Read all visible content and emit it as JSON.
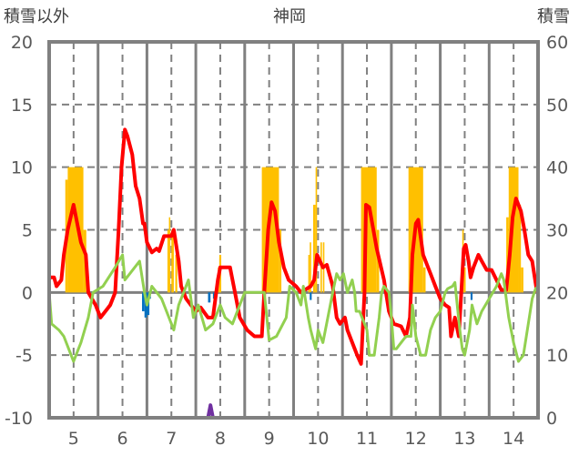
{
  "chart_data": {
    "type": "line",
    "title": "神岡",
    "ylabel_left": "積雪以外",
    "ylabel_right": "積雪",
    "xlim": [
      4.5,
      14.5
    ],
    "ylim_left": [
      -10,
      20
    ],
    "ylim_right": [
      0,
      60
    ],
    "x_ticks": [
      "5",
      "6",
      "7",
      "8",
      "9",
      "10",
      "11",
      "12",
      "13",
      "14"
    ],
    "y_ticks_left": [
      "20",
      "15",
      "10",
      "5",
      "0",
      "-5",
      "-10"
    ],
    "y_ticks_right": [
      "60",
      "50",
      "40",
      "30",
      "20",
      "10",
      "0"
    ],
    "grid": true,
    "colors": {
      "red": "#ff0000",
      "green": "#92d050",
      "orange": "#ffc000",
      "blue": "#0070c0",
      "purple": "#7030a0",
      "axis": "#808080"
    },
    "series": [
      {
        "name": "red",
        "axis": "left",
        "points": [
          [
            4.5,
            1.2
          ],
          [
            4.6,
            1.2
          ],
          [
            4.65,
            0.5
          ],
          [
            4.75,
            1
          ],
          [
            4.8,
            3
          ],
          [
            4.88,
            5
          ],
          [
            5.0,
            7
          ],
          [
            5.05,
            6
          ],
          [
            5.15,
            4
          ],
          [
            5.25,
            3
          ],
          [
            5.3,
            0
          ],
          [
            5.45,
            -1
          ],
          [
            5.55,
            -2
          ],
          [
            5.65,
            -1.5
          ],
          [
            5.75,
            -1
          ],
          [
            5.85,
            0
          ],
          [
            5.92,
            5
          ],
          [
            5.98,
            10
          ],
          [
            6.05,
            13
          ],
          [
            6.1,
            12.5
          ],
          [
            6.2,
            11
          ],
          [
            6.27,
            8.5
          ],
          [
            6.35,
            7.5
          ],
          [
            6.42,
            5.5
          ],
          [
            6.45,
            5.5
          ],
          [
            6.5,
            4
          ],
          [
            6.6,
            3.2
          ],
          [
            6.7,
            3.5
          ],
          [
            6.75,
            3.3
          ],
          [
            6.85,
            4.5
          ],
          [
            7.0,
            4.5
          ],
          [
            7.05,
            5
          ],
          [
            7.15,
            2.5
          ],
          [
            7.2,
            0.5
          ],
          [
            7.3,
            -0.5
          ],
          [
            7.4,
            -1
          ],
          [
            7.5,
            -1.5
          ],
          [
            7.6,
            -1.2
          ],
          [
            7.75,
            -2
          ],
          [
            7.85,
            -2
          ],
          [
            7.9,
            -0.5
          ],
          [
            7.95,
            1
          ],
          [
            8.0,
            2
          ],
          [
            8.2,
            2
          ],
          [
            8.3,
            0
          ],
          [
            8.4,
            -2
          ],
          [
            8.55,
            -3
          ],
          [
            8.7,
            -3.5
          ],
          [
            8.85,
            -3.5
          ],
          [
            8.9,
            0
          ],
          [
            8.98,
            5
          ],
          [
            9.05,
            7.2
          ],
          [
            9.12,
            6.5
          ],
          [
            9.2,
            4
          ],
          [
            9.3,
            2
          ],
          [
            9.4,
            1
          ],
          [
            9.55,
            0.5
          ],
          [
            9.65,
            0
          ],
          [
            9.85,
            0.5
          ],
          [
            9.92,
            1
          ],
          [
            9.98,
            3
          ],
          [
            10.1,
            2
          ],
          [
            10.18,
            2.2
          ],
          [
            10.3,
            0.5
          ],
          [
            10.38,
            -2
          ],
          [
            10.45,
            -2.5
          ],
          [
            10.55,
            -2
          ],
          [
            10.6,
            -3
          ],
          [
            10.8,
            -5
          ],
          [
            10.88,
            -5.7
          ],
          [
            10.95,
            0
          ],
          [
            10.98,
            7
          ],
          [
            11.05,
            6.8
          ],
          [
            11.2,
            3.5
          ],
          [
            11.35,
            1
          ],
          [
            11.45,
            -1.5
          ],
          [
            11.55,
            -2.5
          ],
          [
            11.7,
            -2.7
          ],
          [
            11.8,
            -3.5
          ],
          [
            11.88,
            -2
          ],
          [
            11.93,
            3
          ],
          [
            12.0,
            5.5
          ],
          [
            12.05,
            5.8
          ],
          [
            12.15,
            3
          ],
          [
            12.3,
            1.5
          ],
          [
            12.4,
            0.5
          ],
          [
            12.5,
            -0.5
          ],
          [
            12.6,
            -1
          ],
          [
            12.68,
            -1.2
          ],
          [
            12.72,
            -3.5
          ],
          [
            12.8,
            -2
          ],
          [
            12.88,
            -3.5
          ],
          [
            12.93,
            0
          ],
          [
            12.98,
            3.5
          ],
          [
            13.02,
            3.8
          ],
          [
            13.08,
            2.5
          ],
          [
            13.12,
            1.2
          ],
          [
            13.18,
            2
          ],
          [
            13.28,
            3
          ],
          [
            13.35,
            2.5
          ],
          [
            13.45,
            1.8
          ],
          [
            13.55,
            1.8
          ],
          [
            13.65,
            1
          ],
          [
            13.75,
            0.2
          ],
          [
            13.85,
            0.2
          ],
          [
            13.92,
            3
          ],
          [
            13.98,
            6
          ],
          [
            14.05,
            7.5
          ],
          [
            14.15,
            6.5
          ],
          [
            14.22,
            5
          ],
          [
            14.3,
            3
          ],
          [
            14.38,
            2.5
          ],
          [
            14.48,
            0
          ]
        ]
      },
      {
        "name": "green",
        "axis": "left",
        "points": [
          [
            4.5,
            0
          ],
          [
            4.55,
            -2.5
          ],
          [
            4.7,
            -3
          ],
          [
            4.8,
            -3.5
          ],
          [
            5.0,
            -5.5
          ],
          [
            5.15,
            -4
          ],
          [
            5.3,
            -2
          ],
          [
            5.4,
            0
          ],
          [
            5.6,
            0.5
          ],
          [
            5.85,
            2
          ],
          [
            6.0,
            3
          ],
          [
            6.05,
            1
          ],
          [
            6.15,
            1.5
          ],
          [
            6.35,
            2.5
          ],
          [
            6.45,
            0
          ],
          [
            6.5,
            -1
          ],
          [
            6.6,
            0.5
          ],
          [
            6.8,
            -0.5
          ],
          [
            6.9,
            -1.5
          ],
          [
            7.0,
            -2.5
          ],
          [
            7.05,
            -3
          ],
          [
            7.15,
            -1
          ],
          [
            7.25,
            0
          ],
          [
            7.35,
            1
          ],
          [
            7.45,
            -2
          ],
          [
            7.55,
            -1
          ],
          [
            7.7,
            -3
          ],
          [
            7.85,
            -2.5
          ],
          [
            8.0,
            -1
          ],
          [
            8.1,
            -2
          ],
          [
            8.25,
            -2.5
          ],
          [
            8.4,
            -1
          ],
          [
            8.5,
            0
          ],
          [
            8.7,
            0
          ],
          [
            8.9,
            0
          ],
          [
            9.0,
            -3.8
          ],
          [
            9.15,
            -3.5
          ],
          [
            9.35,
            -2
          ],
          [
            9.42,
            0.5
          ],
          [
            9.55,
            0
          ],
          [
            9.65,
            -1
          ],
          [
            9.7,
            0.5
          ],
          [
            9.8,
            -2
          ],
          [
            9.85,
            -3
          ],
          [
            9.95,
            -4.5
          ],
          [
            10.0,
            -3
          ],
          [
            10.05,
            -3.5
          ],
          [
            10.1,
            -4
          ],
          [
            10.2,
            -2
          ],
          [
            10.3,
            0
          ],
          [
            10.38,
            1.5
          ],
          [
            10.45,
            1
          ],
          [
            10.52,
            1.5
          ],
          [
            10.6,
            0
          ],
          [
            10.7,
            1
          ],
          [
            10.75,
            0
          ],
          [
            10.78,
            -1.5
          ],
          [
            10.85,
            -1.5
          ],
          [
            10.9,
            -2
          ],
          [
            11.0,
            -3
          ],
          [
            11.05,
            -5
          ],
          [
            11.15,
            -5
          ],
          [
            11.25,
            -2
          ],
          [
            11.3,
            0
          ],
          [
            11.35,
            0.5
          ],
          [
            11.45,
            0
          ],
          [
            11.5,
            -2
          ],
          [
            11.55,
            -4.5
          ],
          [
            11.6,
            -4.5
          ],
          [
            11.7,
            -4
          ],
          [
            11.8,
            -3.5
          ],
          [
            11.9,
            -3.5
          ],
          [
            11.93,
            -1
          ],
          [
            12.0,
            -3.5
          ],
          [
            12.1,
            -5
          ],
          [
            12.2,
            -5
          ],
          [
            12.3,
            -3
          ],
          [
            12.4,
            -2
          ],
          [
            12.5,
            -1.5
          ],
          [
            12.6,
            0
          ],
          [
            12.65,
            0.3
          ],
          [
            12.75,
            0.5
          ],
          [
            12.8,
            0.8
          ],
          [
            12.9,
            -3
          ],
          [
            12.95,
            -4.5
          ],
          [
            13.0,
            -5
          ],
          [
            13.1,
            -3
          ],
          [
            13.15,
            -1
          ],
          [
            13.25,
            -2.5
          ],
          [
            13.35,
            -1.5
          ],
          [
            13.5,
            -0.5
          ],
          [
            13.65,
            0.5
          ],
          [
            13.75,
            1.5
          ],
          [
            13.8,
            1
          ],
          [
            13.9,
            -2
          ],
          [
            14.0,
            -4
          ],
          [
            14.1,
            -5.5
          ],
          [
            14.2,
            -5
          ],
          [
            14.3,
            -2.5
          ],
          [
            14.38,
            -0.5
          ],
          [
            14.45,
            0.3
          ],
          [
            14.5,
            0.5
          ]
        ]
      },
      {
        "name": "purple",
        "axis": "left",
        "points": [
          [
            4.5,
            -10
          ],
          [
            7.75,
            -10
          ],
          [
            7.8,
            -9
          ],
          [
            7.85,
            -10
          ],
          [
            14.5,
            -10
          ]
        ]
      }
    ],
    "bars_orange_right_axis": [
      [
        4.83,
        4.88,
        38
      ],
      [
        4.88,
        5.2,
        40
      ],
      [
        5.2,
        5.26,
        30
      ],
      [
        5.85,
        5.88,
        22
      ],
      [
        6.92,
        6.95,
        30
      ],
      [
        6.95,
        6.97,
        32
      ],
      [
        7.0,
        7.05,
        30
      ],
      [
        7.08,
        7.12,
        26
      ],
      [
        7.95,
        7.98,
        24
      ],
      [
        7.98,
        8.02,
        26
      ],
      [
        8.85,
        9.2,
        40
      ],
      [
        9.2,
        9.25,
        30
      ],
      [
        9.8,
        9.83,
        26
      ],
      [
        9.83,
        9.86,
        28
      ],
      [
        9.9,
        9.95,
        34
      ],
      [
        9.95,
        9.98,
        40
      ],
      [
        10.05,
        10.08,
        28
      ],
      [
        10.1,
        10.13,
        28
      ],
      [
        10.88,
        11.2,
        40
      ],
      [
        11.2,
        11.25,
        30
      ],
      [
        11.85,
        12.15,
        40
      ],
      [
        12.15,
        12.2,
        24
      ],
      [
        12.95,
        12.98,
        30
      ],
      [
        12.98,
        13.02,
        24
      ],
      [
        13.85,
        13.9,
        32
      ],
      [
        13.9,
        14.1,
        40
      ],
      [
        14.1,
        14.15,
        34
      ],
      [
        14.15,
        14.2,
        24
      ]
    ],
    "bars_blue_left_axis": [
      [
        6.4,
        6.45,
        -1.5
      ],
      [
        6.45,
        6.5,
        -2
      ],
      [
        6.5,
        6.55,
        -1.8
      ],
      [
        6.55,
        6.58,
        -0.5
      ],
      [
        7.75,
        7.8,
        -0.8
      ],
      [
        7.85,
        7.88,
        -0.5
      ],
      [
        9.83,
        9.87,
        -0.6
      ],
      [
        13.12,
        13.16,
        -0.6
      ]
    ]
  }
}
